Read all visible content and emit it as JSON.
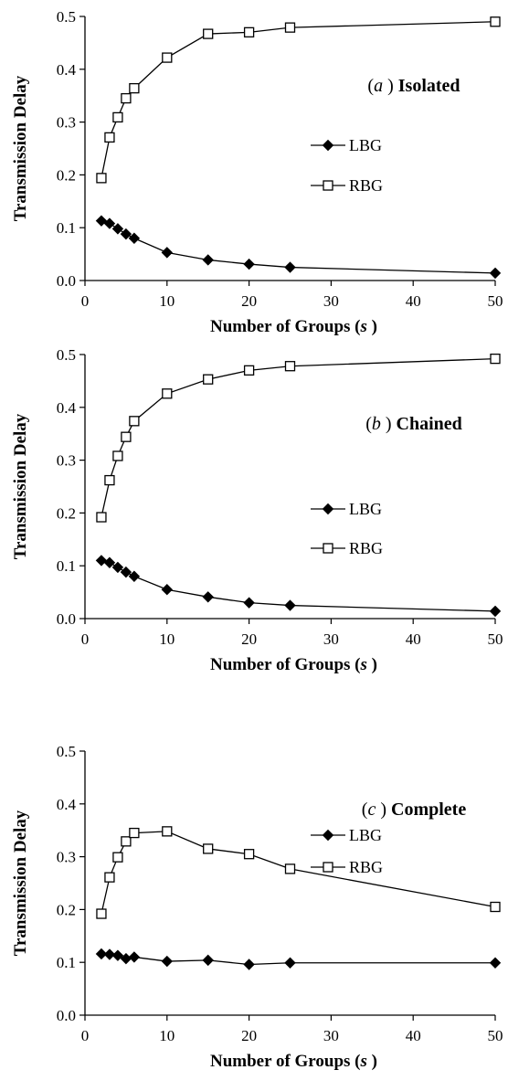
{
  "chart_data": [
    {
      "type": "line",
      "panel_label": "a",
      "annotation": "Isolated",
      "xlabel": "Number of Groups",
      "xlabel_var": "s",
      "ylabel": "Transmission Delay",
      "xlim": [
        0,
        50
      ],
      "ylim": [
        0,
        0.5
      ],
      "xticks": [
        "0",
        "10",
        "20",
        "30",
        "40",
        "50"
      ],
      "yticks": [
        "0.0",
        "0.1",
        "0.2",
        "0.3",
        "0.4",
        "0.5"
      ],
      "legend_position": "right-middle",
      "x": [
        2,
        3,
        4,
        5,
        6,
        10,
        15,
        20,
        25,
        50
      ],
      "series": [
        {
          "name": "LBG",
          "marker": "filled-diamond",
          "values": [
            0.113,
            0.108,
            0.098,
            0.088,
            0.08,
            0.053,
            0.039,
            0.031,
            0.025,
            0.014
          ]
        },
        {
          "name": "RBG",
          "marker": "open-square",
          "values": [
            0.194,
            0.271,
            0.309,
            0.345,
            0.364,
            0.422,
            0.467,
            0.47,
            0.479,
            0.49
          ]
        }
      ]
    },
    {
      "type": "line",
      "panel_label": "b",
      "annotation": "Chained",
      "xlabel": "Number of Groups",
      "xlabel_var": "s",
      "ylabel": "Transmission Delay",
      "xlim": [
        0,
        50
      ],
      "ylim": [
        0,
        0.5
      ],
      "xticks": [
        "0",
        "10",
        "20",
        "30",
        "40",
        "50"
      ],
      "yticks": [
        "0.0",
        "0.1",
        "0.2",
        "0.3",
        "0.4",
        "0.5"
      ],
      "legend_position": "right-middle",
      "x": [
        2,
        3,
        4,
        5,
        6,
        10,
        15,
        20,
        25,
        50
      ],
      "series": [
        {
          "name": "LBG",
          "marker": "filled-diamond",
          "values": [
            0.11,
            0.106,
            0.097,
            0.088,
            0.08,
            0.055,
            0.041,
            0.03,
            0.025,
            0.014
          ]
        },
        {
          "name": "RBG",
          "marker": "open-square",
          "values": [
            0.192,
            0.262,
            0.308,
            0.344,
            0.374,
            0.426,
            0.453,
            0.47,
            0.478,
            0.492
          ]
        }
      ]
    },
    {
      "type": "line",
      "panel_label": "c",
      "annotation": "Complete",
      "xlabel": "Number of Groups",
      "xlabel_var": "s",
      "ylabel": "Transmission Delay",
      "xlim": [
        0,
        50
      ],
      "ylim": [
        0,
        0.5
      ],
      "xticks": [
        "0",
        "10",
        "20",
        "30",
        "40",
        "50"
      ],
      "yticks": [
        "0.0",
        "0.1",
        "0.2",
        "0.3",
        "0.4",
        "0.5"
      ],
      "legend_position": "right-upper",
      "x": [
        2,
        3,
        4,
        5,
        6,
        10,
        15,
        20,
        25,
        50
      ],
      "series": [
        {
          "name": "LBG",
          "marker": "filled-diamond",
          "values": [
            0.116,
            0.115,
            0.113,
            0.107,
            0.11,
            0.102,
            0.104,
            0.096,
            0.099,
            0.099
          ]
        },
        {
          "name": "RBG",
          "marker": "open-square",
          "values": [
            0.192,
            0.261,
            0.299,
            0.329,
            0.345,
            0.348,
            0.315,
            0.305,
            0.277,
            0.205
          ]
        }
      ]
    }
  ]
}
